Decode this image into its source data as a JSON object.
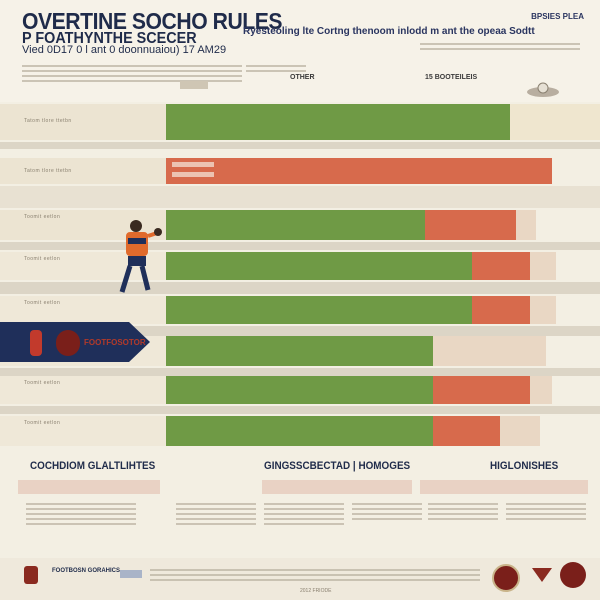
{
  "header": {
    "title_line1": "OVERTINE SOCHO RULES",
    "title_line2": "P FOATHYNTHE SCECER",
    "title_line3": "Vied 0D17 0 l ant 0 doonnuaiou) 17 AM29",
    "subtitle": "Ryesteoling lte Cortng thenoom inlodd m ant the opeaa Sodtt",
    "corner_label": "BPSIES PLEA",
    "label_left": "OTHER",
    "label_right": "15 BOOTEILEIS"
  },
  "table": {
    "rows": [
      {
        "left_text": "Tatom tlore ttetbn",
        "bars": [
          {
            "color": "#6f9a45",
            "from": 166,
            "to": 510
          },
          {
            "color": "#efe6cf",
            "from": 510,
            "to": 600
          }
        ]
      },
      {
        "left_text": "Tatom tlore ttetbn",
        "bars": [
          {
            "color": "#d76a4c",
            "from": 166,
            "to": 552
          }
        ]
      },
      {
        "left_text": "Toomit eetlon",
        "bars": [
          {
            "color": "#6f9a45",
            "from": 166,
            "to": 425
          },
          {
            "color": "#d76a4c",
            "from": 425,
            "to": 516
          },
          {
            "color": "#e9d7c4",
            "from": 516,
            "to": 536
          }
        ]
      },
      {
        "left_text": "Toomit eetlon",
        "bars": [
          {
            "color": "#6f9a45",
            "from": 166,
            "to": 472
          },
          {
            "color": "#d76a4c",
            "from": 472,
            "to": 530
          },
          {
            "color": "#e9d7c4",
            "from": 530,
            "to": 556
          }
        ]
      },
      {
        "left_text": "Toomit eetlon",
        "bars": [
          {
            "color": "#6f9a45",
            "from": 166,
            "to": 472
          },
          {
            "color": "#d76a4c",
            "from": 472,
            "to": 530
          },
          {
            "color": "#e9d7c4",
            "from": 530,
            "to": 556
          }
        ]
      },
      {
        "left_text": "",
        "bars": [
          {
            "color": "#6f9a45",
            "from": 166,
            "to": 433
          },
          {
            "color": "#e9d7c4",
            "from": 433,
            "to": 546
          }
        ]
      },
      {
        "left_text": "Toomit eetlon",
        "bars": [
          {
            "color": "#6f9a45",
            "from": 166,
            "to": 433
          },
          {
            "color": "#d76a4c",
            "from": 433,
            "to": 530
          },
          {
            "color": "#e9d7c4",
            "from": 530,
            "to": 552
          }
        ]
      },
      {
        "left_text": "Toomit eetlon",
        "bars": [
          {
            "color": "#6f9a45",
            "from": 166,
            "to": 433
          },
          {
            "color": "#d76a4c",
            "from": 433,
            "to": 500
          },
          {
            "color": "#e9d7c4",
            "from": 500,
            "to": 540
          }
        ]
      }
    ],
    "banner_label": "FOOTFOSOTOR"
  },
  "sections": {
    "left": "COCHDIOM GLALTLIHTES",
    "middle": "GINGSSCBECTAD | HOMOGES",
    "right": "HIGLONISHES"
  },
  "footer": {
    "left_text": "FOOTBOSN GORAHICS",
    "mid_text": "2012 FRIODE"
  },
  "colors": {
    "navy": "#1f2f5a",
    "green": "#6f9a45",
    "red": "#d76a4c",
    "cream": "#f3efe3"
  }
}
